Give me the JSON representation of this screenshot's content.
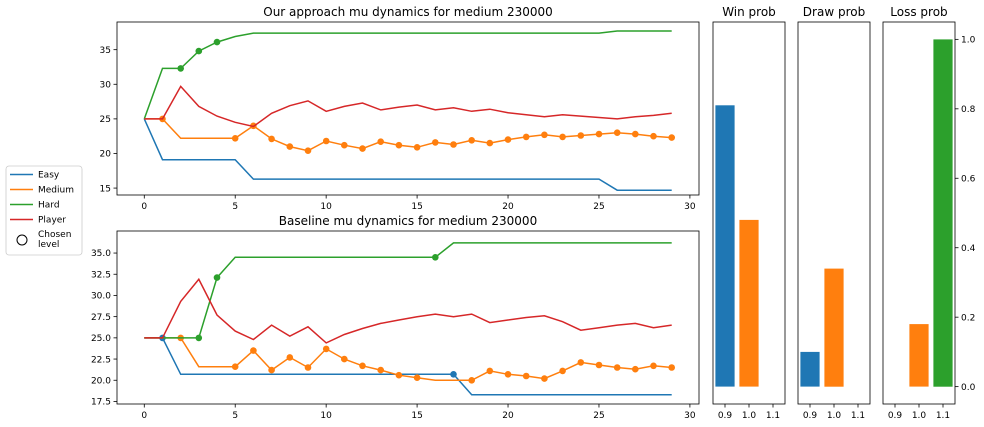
{
  "chart_data": [
    {
      "type": "line",
      "title": "Our approach mu dynamics for medium 230000",
      "xlim": [
        -1.5,
        30.5
      ],
      "ylim": [
        14,
        39
      ],
      "xticks": [
        0,
        5,
        10,
        15,
        20,
        25,
        30
      ],
      "yticks": [
        15,
        20,
        25,
        30,
        35
      ],
      "series": [
        {
          "name": "Easy",
          "color": "#1f77b4",
          "points": [
            [
              0,
              25
            ],
            [
              1,
              19.1
            ],
            [
              5,
              19.1
            ],
            [
              6,
              16.3
            ],
            [
              25,
              16.3
            ],
            [
              26,
              14.7
            ],
            [
              29,
              14.7
            ]
          ],
          "markers": []
        },
        {
          "name": "Medium",
          "color": "#ff7f0e",
          "points": [
            [
              0,
              25
            ],
            [
              1,
              25
            ],
            [
              2,
              22.2
            ],
            [
              5,
              22.2
            ],
            [
              6,
              24
            ],
            [
              7,
              22.1
            ],
            [
              8,
              21
            ],
            [
              9,
              20.4
            ],
            [
              10,
              21.8
            ],
            [
              11,
              21.2
            ],
            [
              12,
              20.7
            ],
            [
              13,
              21.7
            ],
            [
              14,
              21.2
            ],
            [
              15,
              20.9
            ],
            [
              16,
              21.6
            ],
            [
              17,
              21.3
            ],
            [
              18,
              21.9
            ],
            [
              19,
              21.5
            ],
            [
              20,
              22
            ],
            [
              21,
              22.4
            ],
            [
              22,
              22.7
            ],
            [
              23,
              22.4
            ],
            [
              24,
              22.6
            ],
            [
              25,
              22.8
            ],
            [
              26,
              23
            ],
            [
              27,
              22.8
            ],
            [
              28,
              22.5
            ],
            [
              29,
              22.3
            ]
          ],
          "markers": [
            1,
            5,
            6,
            7,
            8,
            9,
            10,
            11,
            12,
            13,
            14,
            15,
            16,
            17,
            18,
            19,
            20,
            21,
            22,
            23,
            24,
            25,
            26,
            27,
            28,
            29
          ]
        },
        {
          "name": "Hard",
          "color": "#2ca02c",
          "points": [
            [
              0,
              25
            ],
            [
              1,
              32.3
            ],
            [
              2,
              32.3
            ],
            [
              3,
              34.8
            ],
            [
              4,
              36.1
            ],
            [
              5,
              36.9
            ],
            [
              6,
              37.4
            ],
            [
              25,
              37.4
            ],
            [
              26,
              37.7
            ],
            [
              29,
              37.7
            ]
          ],
          "markers": [
            2,
            3,
            4
          ]
        },
        {
          "name": "Player",
          "color": "#d62728",
          "points": [
            [
              0,
              25
            ],
            [
              1,
              25
            ],
            [
              2,
              29.7
            ],
            [
              3,
              26.8
            ],
            [
              4,
              25.4
            ],
            [
              5,
              24.5
            ],
            [
              6,
              23.9
            ],
            [
              7,
              25.8
            ],
            [
              8,
              26.9
            ],
            [
              9,
              27.6
            ],
            [
              10,
              26.1
            ],
            [
              11,
              26.8
            ],
            [
              12,
              27.3
            ],
            [
              13,
              26.3
            ],
            [
              14,
              26.7
            ],
            [
              15,
              27
            ],
            [
              16,
              26.3
            ],
            [
              17,
              26.6
            ],
            [
              18,
              26.1
            ],
            [
              19,
              26.4
            ],
            [
              20,
              25.9
            ],
            [
              21,
              25.6
            ],
            [
              22,
              25.3
            ],
            [
              23,
              25.6
            ],
            [
              24,
              25.4
            ],
            [
              25,
              25.2
            ],
            [
              26,
              25
            ],
            [
              27,
              25.3
            ],
            [
              28,
              25.5
            ],
            [
              29,
              25.8
            ]
          ],
          "markers": []
        }
      ]
    },
    {
      "type": "line",
      "title": "Baseline mu dynamics for medium 230000",
      "xlim": [
        -1.5,
        30.5
      ],
      "ylim": [
        17.2,
        37.6
      ],
      "xticks": [
        0,
        5,
        10,
        15,
        20,
        25,
        30
      ],
      "yticks": [
        17.5,
        20.0,
        22.5,
        25.0,
        27.5,
        30.0,
        32.5,
        35.0
      ],
      "series": [
        {
          "name": "Easy",
          "color": "#1f77b4",
          "points": [
            [
              0,
              25
            ],
            [
              1,
              25
            ],
            [
              2,
              20.7
            ],
            [
              17,
              20.7
            ],
            [
              18,
              18.3
            ],
            [
              29,
              18.3
            ]
          ],
          "markers": [
            1,
            17
          ]
        },
        {
          "name": "Medium",
          "color": "#ff7f0e",
          "points": [
            [
              0,
              25
            ],
            [
              1,
              25
            ],
            [
              2,
              25
            ],
            [
              3,
              21.6
            ],
            [
              5,
              21.6
            ],
            [
              6,
              23.5
            ],
            [
              7,
              21.2
            ],
            [
              8,
              22.7
            ],
            [
              9,
              21.5
            ],
            [
              10,
              23.7
            ],
            [
              11,
              22.5
            ],
            [
              12,
              21.7
            ],
            [
              13,
              21.2
            ],
            [
              14,
              20.6
            ],
            [
              15,
              20.3
            ],
            [
              16,
              20
            ],
            [
              17,
              20
            ],
            [
              18,
              20
            ],
            [
              19,
              21.1
            ],
            [
              20,
              20.7
            ],
            [
              21,
              20.5
            ],
            [
              22,
              20.2
            ],
            [
              23,
              21.1
            ],
            [
              24,
              22.1
            ],
            [
              25,
              21.8
            ],
            [
              26,
              21.5
            ],
            [
              27,
              21.3
            ],
            [
              28,
              21.7
            ],
            [
              29,
              21.5
            ]
          ],
          "markers": [
            2,
            5,
            6,
            7,
            8,
            9,
            10,
            11,
            12,
            13,
            14,
            15,
            18,
            19,
            20,
            21,
            22,
            23,
            24,
            25,
            26,
            27,
            28,
            29
          ]
        },
        {
          "name": "Hard",
          "color": "#2ca02c",
          "points": [
            [
              0,
              25
            ],
            [
              1,
              25
            ],
            [
              2,
              25
            ],
            [
              3,
              25
            ],
            [
              4,
              32.1
            ],
            [
              5,
              34.5
            ],
            [
              16,
              34.5
            ],
            [
              17,
              36.2
            ],
            [
              29,
              36.2
            ]
          ],
          "markers": [
            3,
            4,
            16
          ]
        },
        {
          "name": "Player",
          "color": "#d62728",
          "points": [
            [
              0,
              25
            ],
            [
              1,
              25
            ],
            [
              2,
              29.3
            ],
            [
              3,
              31.9
            ],
            [
              4,
              27.7
            ],
            [
              5,
              25.8
            ],
            [
              6,
              24.8
            ],
            [
              7,
              26.5
            ],
            [
              8,
              25.2
            ],
            [
              9,
              26.3
            ],
            [
              10,
              24.4
            ],
            [
              11,
              25.4
            ],
            [
              12,
              26.1
            ],
            [
              13,
              26.7
            ],
            [
              14,
              27.1
            ],
            [
              15,
              27.5
            ],
            [
              16,
              27.8
            ],
            [
              17,
              27.5
            ],
            [
              18,
              27.8
            ],
            [
              19,
              26.8
            ],
            [
              20,
              27.1
            ],
            [
              21,
              27.4
            ],
            [
              22,
              27.6
            ],
            [
              23,
              26.9
            ],
            [
              24,
              25.9
            ],
            [
              25,
              26.2
            ],
            [
              26,
              26.5
            ],
            [
              27,
              26.7
            ],
            [
              28,
              26.2
            ],
            [
              29,
              26.5
            ]
          ],
          "markers": []
        }
      ]
    },
    {
      "type": "bar",
      "title": "Win prob",
      "xticks": [
        "0.9",
        "1.0",
        "1.1"
      ],
      "bars": [
        {
          "x": 0.9,
          "value": 0.81,
          "color": "#1f77b4"
        },
        {
          "x": 1.0,
          "value": 0.48,
          "color": "#ff7f0e"
        }
      ]
    },
    {
      "type": "bar",
      "title": "Draw prob",
      "xticks": [
        "0.9",
        "1.0",
        "1.1"
      ],
      "bars": [
        {
          "x": 0.9,
          "value": 0.1,
          "color": "#1f77b4"
        },
        {
          "x": 1.0,
          "value": 0.34,
          "color": "#ff7f0e"
        }
      ]
    },
    {
      "type": "bar",
      "title": "Loss prob",
      "xticks": [
        "0.9",
        "1.0",
        "1.1"
      ],
      "yticks": [
        "0.0",
        "0.2",
        "0.4",
        "0.6",
        "0.8",
        "1.0"
      ],
      "bars": [
        {
          "x": 1.0,
          "value": 0.18,
          "color": "#ff7f0e"
        },
        {
          "x": 1.1,
          "value": 1.0,
          "color": "#2ca02c"
        }
      ]
    }
  ],
  "legend": {
    "placement": "left",
    "items": [
      {
        "label": "Easy",
        "color": "#1f77b4",
        "kind": "line"
      },
      {
        "label": "Medium",
        "color": "#ff7f0e",
        "kind": "line"
      },
      {
        "label": "Hard",
        "color": "#2ca02c",
        "kind": "line"
      },
      {
        "label": "Player",
        "color": "#d62728",
        "kind": "line"
      },
      {
        "label": "Chosen level",
        "color": "#000000",
        "kind": "marker"
      }
    ]
  }
}
